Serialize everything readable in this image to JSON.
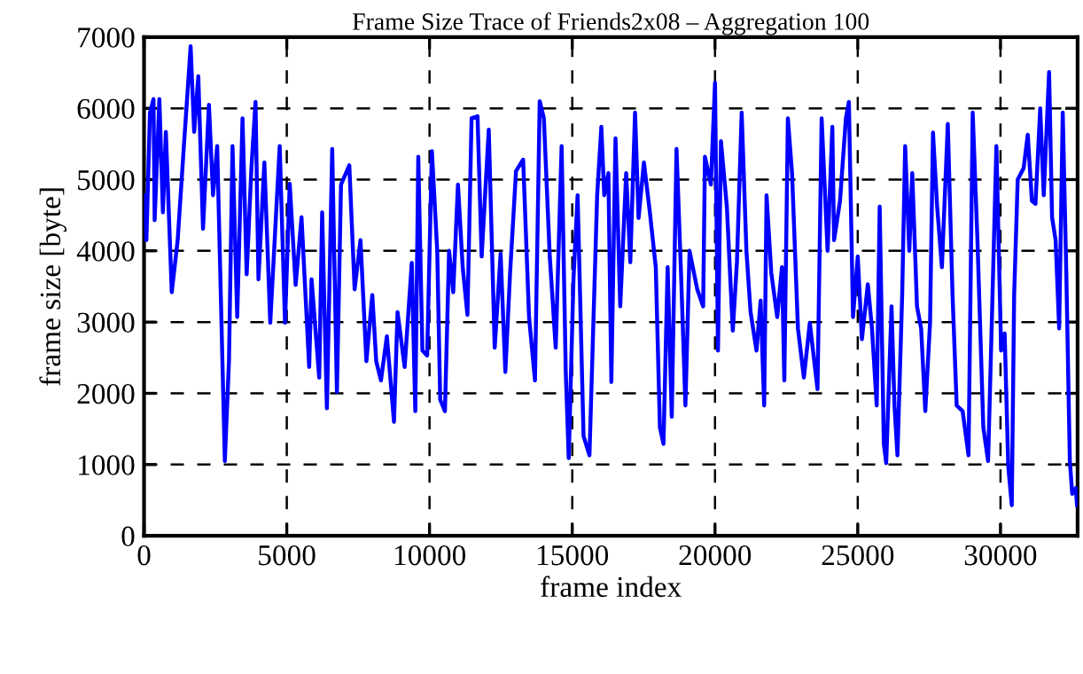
{
  "chart_data": {
    "type": "line",
    "title": "Frame Size Trace of Friends2x08 – Aggregation 100",
    "xlabel": "frame index",
    "ylabel": "frame size [byte]",
    "xlim": [
      0,
      32700
    ],
    "ylim": [
      0,
      7000
    ],
    "xticks": [
      0,
      5000,
      10000,
      15000,
      20000,
      25000,
      30000
    ],
    "yticks": [
      0,
      1000,
      2000,
      3000,
      4000,
      5000,
      6000,
      7000
    ],
    "grid": true,
    "line_style": "solid",
    "marker": "none",
    "series": [
      {
        "color": "#0000ff",
        "x": [
          0,
          83,
          207,
          331,
          372,
          537,
          661,
          764,
          971,
          1178,
          1384,
          1632,
          1756,
          1901,
          2066,
          2273,
          2417,
          2562,
          2727,
          2830,
          2975,
          3099,
          3264,
          3450,
          3595,
          3760,
          3905,
          4008,
          4215,
          4421,
          4752,
          4938,
          5103,
          5310,
          5516,
          5785,
          5868,
          6136,
          6239,
          6405,
          6591,
          6756,
          6900,
          7190,
          7376,
          7582,
          7789,
          7995,
          8133,
          8299,
          8506,
          8755,
          8880,
          9129,
          9378,
          9502,
          9606,
          9751,
          9917,
          10083,
          10270,
          10374,
          10540,
          10685,
          10830,
          10996,
          11162,
          11328,
          11473,
          11681,
          11826,
          12075,
          12283,
          12490,
          12656,
          12822,
          13030,
          13279,
          13486,
          13694,
          13860,
          14005,
          14212,
          14420,
          14627,
          14772,
          14876,
          15042,
          15187,
          15395,
          15602,
          15872,
          16018,
          16120,
          16265,
          16369,
          16514,
          16680,
          16888,
          17033,
          17199,
          17323,
          17510,
          17718,
          17925,
          18070,
          18195,
          18340,
          18485,
          18651,
          18817,
          18963,
          19108,
          19378,
          19585,
          19647,
          19855,
          20000,
          20104,
          20208,
          20415,
          20623,
          20768,
          20934,
          21100,
          21245,
          21453,
          21598,
          21722,
          21805,
          21971,
          22179,
          22345,
          22428,
          22552,
          22698,
          22905,
          23113,
          23320,
          23590,
          23735,
          23943,
          24109,
          24170,
          24378,
          24585,
          24689,
          24834,
          25000,
          25145,
          25353,
          25498,
          25664,
          25768,
          25913,
          25996,
          26183,
          26287,
          26390,
          26556,
          26660,
          26805,
          26909,
          27075,
          27220,
          27366,
          27532,
          27635,
          27781,
          27947,
          28154,
          28320,
          28465,
          28673,
          28880,
          29026,
          29192,
          29399,
          29565,
          29710,
          29856,
          30022,
          30146,
          30271,
          30395,
          30478,
          30603,
          30810,
          30955,
          31100,
          31225,
          31391,
          31515,
          31702,
          31806,
          31930,
          32055,
          32180,
          32305,
          32429,
          32512,
          32637,
          32680
        ],
        "values": [
          4780,
          4150,
          5940,
          6130,
          4430,
          6130,
          4540,
          5670,
          3420,
          4150,
          5400,
          6870,
          5670,
          6450,
          4310,
          6050,
          4780,
          5470,
          2760,
          1050,
          2450,
          5470,
          3070,
          5860,
          3670,
          5160,
          6090,
          3600,
          5240,
          2990,
          5470,
          2990,
          4940,
          3520,
          4470,
          2370,
          3600,
          2220,
          4540,
          1790,
          5430,
          2020,
          4930,
          5200,
          3460,
          4150,
          2450,
          3380,
          2450,
          2180,
          2800,
          1600,
          3140,
          2370,
          3830,
          1750,
          5320,
          2600,
          2530,
          5400,
          4000,
          1910,
          1750,
          4000,
          3420,
          4930,
          3770,
          3100,
          5860,
          5890,
          3920,
          5700,
          2640,
          3960,
          2300,
          3690,
          5120,
          5280,
          3070,
          2180,
          6100,
          5860,
          3920,
          2640,
          5470,
          2300,
          1090,
          3600,
          4780,
          1400,
          1130,
          4780,
          5740,
          4780,
          5090,
          2160,
          5580,
          3220,
          5090,
          3840,
          5940,
          4460,
          5240,
          4540,
          3770,
          1520,
          1290,
          3770,
          1670,
          5430,
          3600,
          1830,
          4000,
          3460,
          3220,
          5320,
          4930,
          6360,
          2600,
          5540,
          4620,
          2880,
          3840,
          5940,
          4000,
          3140,
          2600,
          3300,
          1830,
          4780,
          3690,
          3070,
          3770,
          2180,
          5860,
          5090,
          2910,
          2220,
          2990,
          2060,
          5860,
          4000,
          5740,
          4150,
          4700,
          5860,
          6090,
          3070,
          3920,
          2760,
          3530,
          2910,
          1830,
          4620,
          1290,
          1020,
          3220,
          1830,
          1130,
          3380,
          5470,
          4000,
          5090,
          3220,
          2910,
          1750,
          2990,
          5660,
          4620,
          3770,
          5780,
          3380,
          1830,
          1750,
          1130,
          5940,
          4150,
          1520,
          1050,
          3220,
          5470,
          2600,
          2840,
          980,
          430,
          3380,
          5000,
          5160,
          5630,
          4700,
          4660,
          6000,
          4780,
          6510,
          4470,
          4150,
          2910,
          5940,
          3690,
          1050,
          590,
          670,
          430
        ]
      }
    ]
  }
}
